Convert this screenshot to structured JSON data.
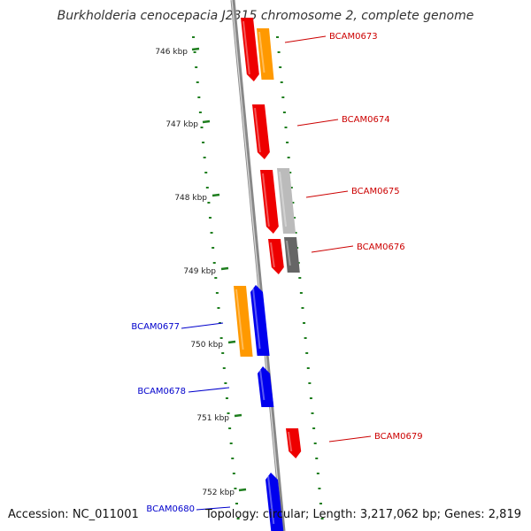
{
  "title": "Burkholderia cenocepacia J2315 chromosome 2, complete genome",
  "footer": {
    "accession": "Accession: NC_011001",
    "summary": "Topology: circular; Length: 3,217,062 bp; Genes: 2,819"
  },
  "colors": {
    "backbone": "#888888",
    "backbone_highlight": "#dddddd",
    "tick": "#1e7e1e",
    "forward_label": "#cc0000",
    "reverse_label": "#0000cc",
    "red_gene": "#ee0000",
    "orange_gene": "#ff9900",
    "light_gray_gene": "#bbbbbb",
    "dark_gray_gene": "#666666",
    "blue_gene": "#0000ee"
  },
  "ticks": [
    "746 kbp",
    "747 kbp",
    "748 kbp",
    "749 kbp",
    "750 kbp",
    "751 kbp",
    "752 kbp"
  ],
  "gene_labels": {
    "forward": [
      "BCAM0673",
      "BCAM0674",
      "BCAM0675",
      "BCAM0676",
      "BCAM0679"
    ],
    "reverse": [
      "BCAM0677",
      "BCAM0678",
      "BCAM0680"
    ]
  }
}
